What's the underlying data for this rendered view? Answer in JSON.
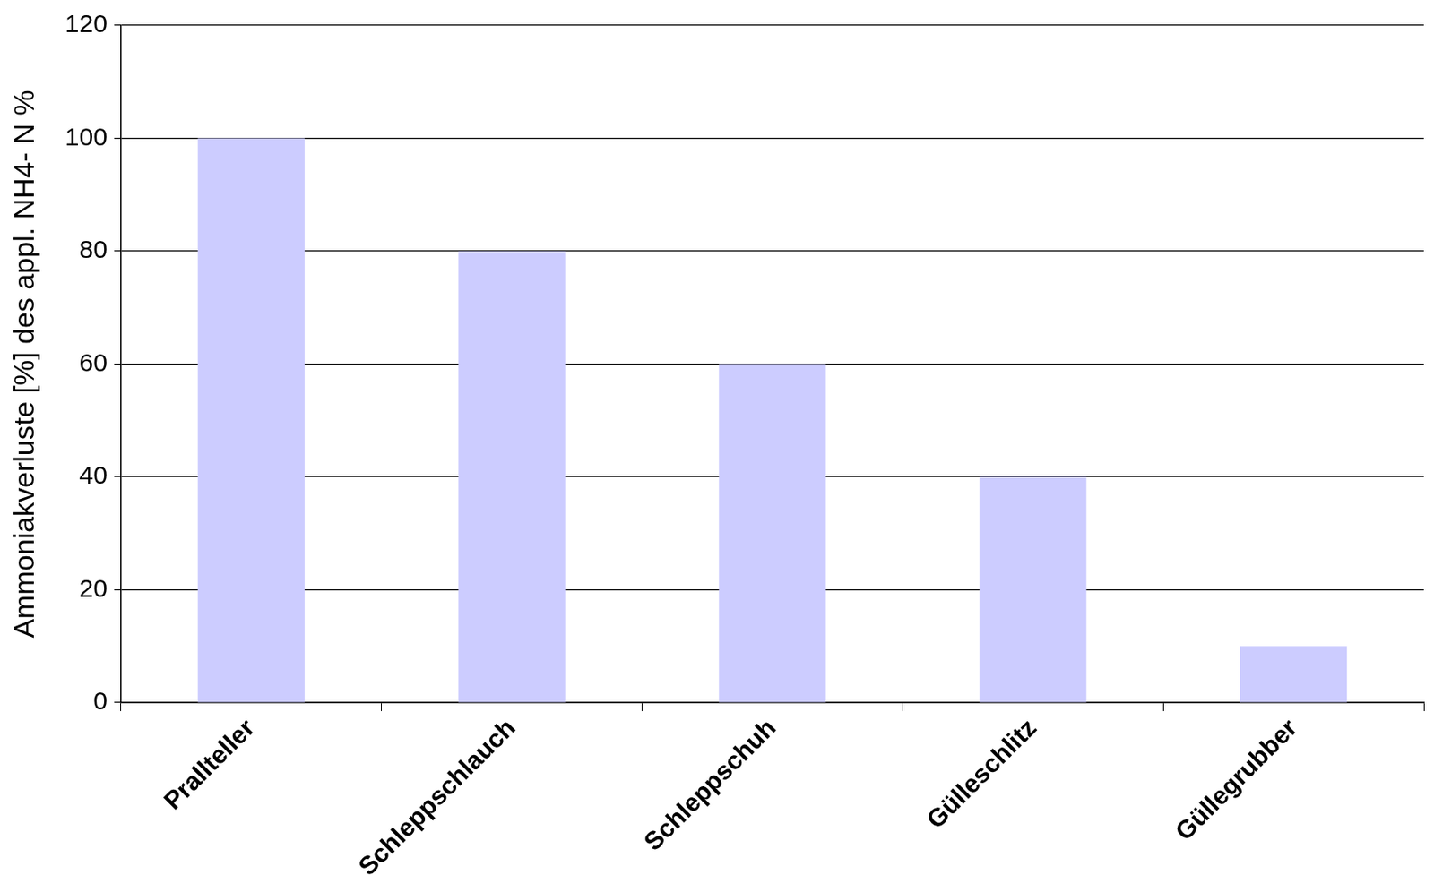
{
  "chart_data": {
    "type": "bar",
    "y_label": "Ammoniakverluste [%] des appl. NH4- N %",
    "categories": [
      "Prallteller",
      "Schleppschlauch",
      "Schleppschuh",
      "Gülleschlitz",
      "Güllegrubber"
    ],
    "values": [
      100,
      80,
      60,
      40,
      10
    ],
    "color": "#ccccff",
    "ylim": [
      0,
      120
    ],
    "yticks": [
      0,
      20,
      40,
      60,
      80,
      100,
      120
    ],
    "grid": true
  }
}
